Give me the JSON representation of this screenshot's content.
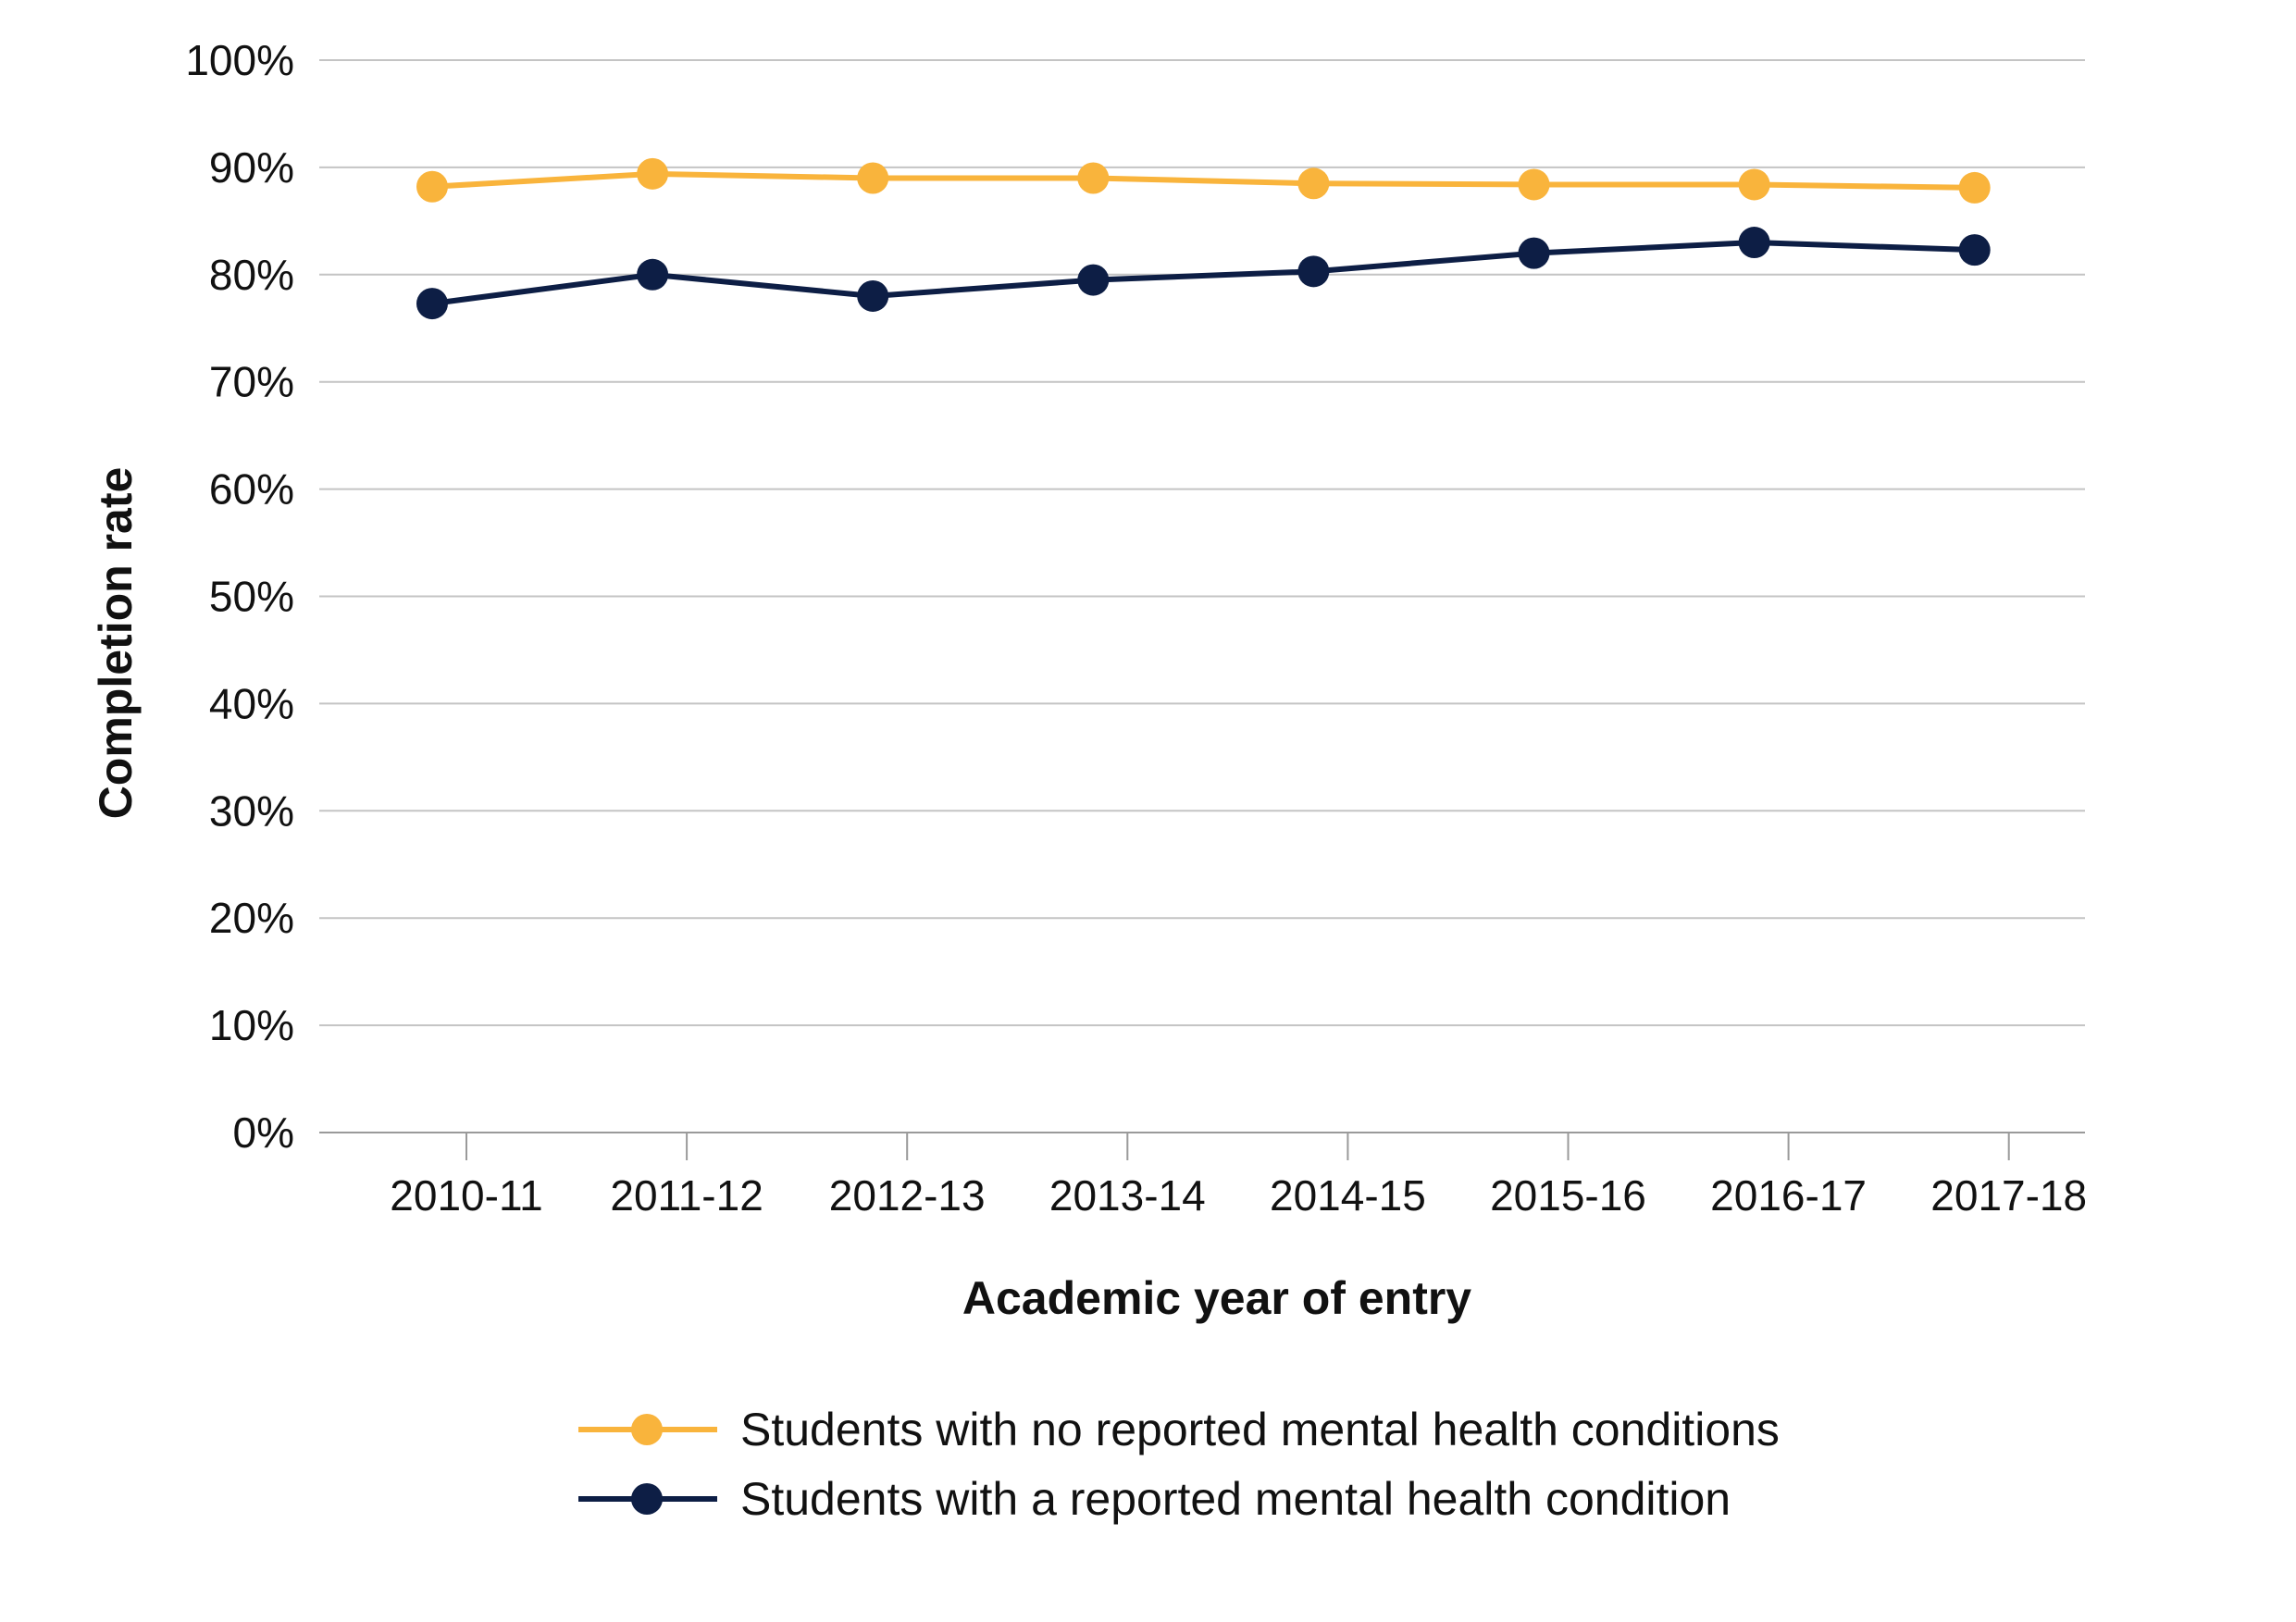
{
  "chart_data": {
    "type": "line",
    "title": "",
    "xlabel": "Academic year of entry",
    "ylabel": "Completion rate",
    "categories": [
      "2010-11",
      "2011-12",
      "2012-13",
      "2013-14",
      "2014-15",
      "2015-16",
      "2016-17",
      "2017-18"
    ],
    "ylim": [
      0,
      100
    ],
    "yticks": [
      0,
      10,
      20,
      30,
      40,
      50,
      60,
      70,
      80,
      90,
      100
    ],
    "ytick_labels": [
      "0%",
      "10%",
      "20%",
      "30%",
      "40%",
      "50%",
      "60%",
      "70%",
      "80%",
      "90%",
      "100%"
    ],
    "grid": true,
    "legend_position": "bottom",
    "series": [
      {
        "name": "Students with no reported mental health conditions",
        "color": "#F9B43C",
        "values": [
          88.2,
          89.4,
          89.0,
          89.0,
          88.5,
          88.4,
          88.4,
          88.1
        ]
      },
      {
        "name": "Students with a reported mental health condition",
        "color": "#0D1E45",
        "values": [
          77.3,
          80.0,
          78.0,
          79.5,
          80.3,
          82.0,
          83.0,
          82.3
        ]
      }
    ]
  }
}
